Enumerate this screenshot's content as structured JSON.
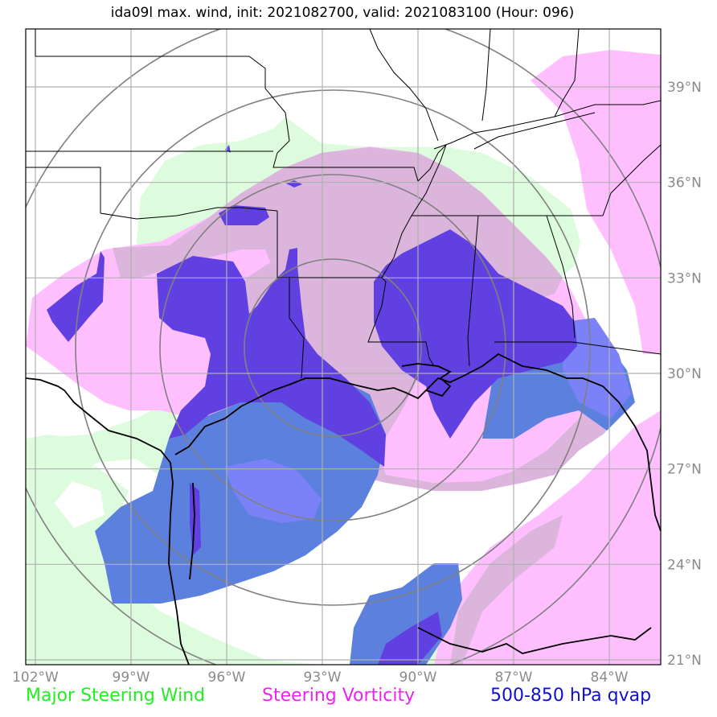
{
  "title": "ida09l max. wind, init: 2021082700, valid: 2021083100 (Hour: 096)",
  "lon_ticks": [
    {
      "value": -102,
      "label": "102°W"
    },
    {
      "value": -99,
      "label": "99°W"
    },
    {
      "value": -96,
      "label": "96°W"
    },
    {
      "value": -93,
      "label": "93°W"
    },
    {
      "value": -90,
      "label": "90°W"
    },
    {
      "value": -87,
      "label": "87°W"
    },
    {
      "value": -84,
      "label": "84°W"
    }
  ],
  "lat_ticks": [
    {
      "value": 39,
      "label": "39°N"
    },
    {
      "value": 36,
      "label": "36°N"
    },
    {
      "value": 33,
      "label": "33°N"
    },
    {
      "value": 30,
      "label": "30°N"
    },
    {
      "value": 27,
      "label": "27°N"
    },
    {
      "value": 24,
      "label": "24°N"
    },
    {
      "value": 21,
      "label": "21°N"
    }
  ],
  "legend": [
    {
      "label": "Major Steering Wind",
      "color": "#22ee22"
    },
    {
      "label": "Steering Vorticity",
      "color": "#ee22ee"
    },
    {
      "label": "500-850 hPa qvap",
      "color": "#1111cc"
    }
  ],
  "field_colors": {
    "steering_wind": "#ddfcdd",
    "vorticity": "#ffbfff",
    "vorticity_over_wind": "#dbb5dc",
    "qvap": "#5c80dd",
    "qvap_overlap": "#6040e0",
    "qvap_light": "#7b82f8"
  }
}
